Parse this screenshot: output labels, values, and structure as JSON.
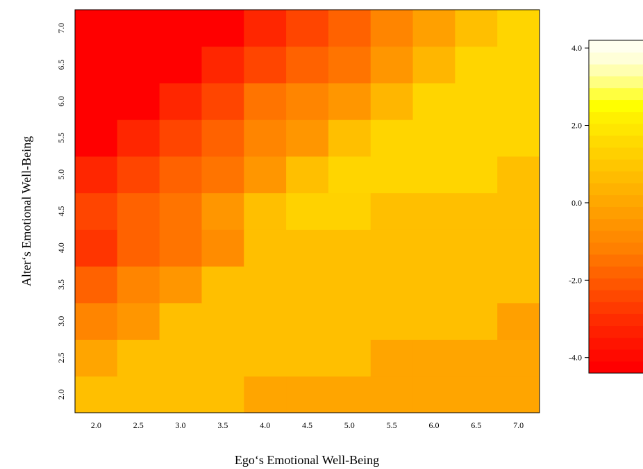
{
  "chart_data": {
    "type": "heatmap",
    "title": "",
    "xlabel": "Ego‘s Emotional Well-Being",
    "ylabel": "Alter‘s Emotional Well-Being",
    "x_categories": [
      "2.0",
      "2.5",
      "3.0",
      "3.5",
      "4.0",
      "4.5",
      "5.0",
      "5.5",
      "6.0",
      "6.5",
      "7.0"
    ],
    "y_categories": [
      "2.0",
      "2.5",
      "3.0",
      "3.5",
      "4.0",
      "4.5",
      "5.0",
      "5.5",
      "6.0",
      "6.5",
      "7.0"
    ],
    "values": [
      [
        0.8,
        0.8,
        0.8,
        0.8,
        0.0,
        0.0,
        0.0,
        0.0,
        0.0,
        0.0,
        0.0
      ],
      [
        0.0,
        0.8,
        0.8,
        0.8,
        0.8,
        0.8,
        0.8,
        0.0,
        0.0,
        0.0,
        0.0
      ],
      [
        -0.8,
        -0.4,
        0.8,
        0.8,
        0.8,
        0.8,
        0.8,
        0.8,
        0.8,
        0.8,
        -0.2
      ],
      [
        -1.6,
        -0.8,
        -0.4,
        0.8,
        0.8,
        0.8,
        0.8,
        0.8,
        0.8,
        0.8,
        0.8
      ],
      [
        -2.2,
        -1.6,
        -1.2,
        -0.6,
        0.8,
        0.8,
        0.8,
        0.8,
        0.8,
        0.8,
        0.8
      ],
      [
        -2.0,
        -1.6,
        -1.2,
        -0.4,
        0.8,
        1.2,
        1.2,
        0.8,
        0.8,
        0.8,
        0.8
      ],
      [
        -2.6,
        -2.0,
        -1.6,
        -1.2,
        -0.4,
        0.8,
        1.4,
        1.4,
        1.4,
        1.4,
        0.8
      ],
      [
        -3.5,
        -2.6,
        -2.0,
        -1.6,
        -0.8,
        -0.4,
        0.8,
        1.4,
        1.4,
        1.4,
        1.4
      ],
      [
        -3.5,
        -3.5,
        -2.6,
        -2.0,
        -1.2,
        -0.8,
        -0.4,
        0.6,
        1.4,
        1.4,
        1.4
      ],
      [
        -3.5,
        -3.5,
        -3.5,
        -2.6,
        -2.0,
        -1.6,
        -1.2,
        -0.4,
        0.6,
        1.4,
        1.4
      ],
      [
        -3.5,
        -3.5,
        -3.5,
        -3.5,
        -2.6,
        -2.0,
        -1.6,
        -0.8,
        -0.2,
        0.8,
        1.4
      ]
    ],
    "colorbar": {
      "range": [
        -4.4,
        4.2
      ],
      "ticks": [
        "4.0",
        "2.0",
        "0.0",
        "-2.0",
        "-4.0"
      ],
      "tick_values": [
        4.0,
        2.0,
        0.0,
        -2.0,
        -4.0
      ],
      "colors": {
        "-3.5": "#FF0000",
        "-3.0": "#FF1A00",
        "-2.6": "#FF2600",
        "-2.2": "#FF3500",
        "-2.0": "#FF4500",
        "-1.6": "#FF6200",
        "-1.2": "#FF7400",
        "-0.8": "#FF8500",
        "-0.6": "#FF8C00",
        "-0.4": "#FF9600",
        "-0.2": "#FFA000",
        "0.0": "#FFA500",
        "0.6": "#FFB600",
        "0.8": "#FFBF00",
        "1.2": "#FFD200",
        "1.4": "#FFD500"
      },
      "band_colors": [
        "#FF0000",
        "#FF0A00",
        "#FF1400",
        "#FF2000",
        "#FF2C00",
        "#FF3A00",
        "#FF4800",
        "#FF5600",
        "#FF6400",
        "#FF7200",
        "#FF8000",
        "#FF8A00",
        "#FF9400",
        "#FF9E00",
        "#FFA800",
        "#FFB200",
        "#FFBC00",
        "#FFC600",
        "#FFD000",
        "#FFDA00",
        "#FFE600",
        "#FFF000",
        "#FFFF00",
        "#FFFF40",
        "#FFFF80",
        "#FFFFB0",
        "#FFFFD8",
        "#FFFFEE"
      ]
    }
  }
}
